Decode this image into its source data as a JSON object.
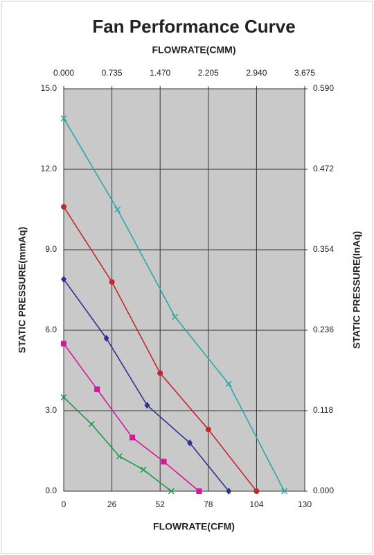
{
  "chart_data": {
    "type": "line",
    "title": "Fan Performance Curve",
    "x_label": "FLOWRATE(CFM)",
    "x2_label": "FLOWRATE(CMM)",
    "y_label": "STATIC PRESSURE(mmAq)",
    "y2_label": "STATIC PRESSURE(InAq)",
    "xlim": [
      0,
      130
    ],
    "xticks": [
      0,
      26,
      52,
      78,
      104,
      130
    ],
    "x2lim": [
      0,
      3.675
    ],
    "x2ticks": [
      {
        "value": 0,
        "label": "0.000"
      },
      0.735,
      {
        "value": 1.47,
        "label": "1.470"
      },
      2.205,
      {
        "value": 2.94,
        "label": "2.940"
      },
      3.675
    ],
    "ylim": [
      0,
      15
    ],
    "yticks": [
      {
        "value": 0,
        "label": "0.0"
      },
      {
        "value": 3,
        "label": "3.0"
      },
      {
        "value": 6,
        "label": "6.0"
      },
      {
        "value": 9,
        "label": "9.0"
      },
      {
        "value": 12,
        "label": "12.0"
      },
      {
        "value": 15,
        "label": "15.0"
      }
    ],
    "y2lim": [
      0,
      0.59
    ],
    "y2ticks": [
      {
        "value": 0,
        "label": "0.000"
      },
      0.118,
      0.236,
      0.354,
      0.472,
      {
        "value": 0.59,
        "label": "0.590"
      }
    ],
    "grid": true,
    "plot_background": "#c9c9c9",
    "series": [
      {
        "color": "#2aa8a8",
        "marker": "cross",
        "x": [
          0,
          29,
          60,
          89,
          119
        ],
        "values": [
          13.9,
          10.5,
          6.5,
          4.0,
          0
        ]
      },
      {
        "color": "#c0282d",
        "marker": "circle",
        "x": [
          0,
          26,
          52,
          78,
          104
        ],
        "values": [
          10.6,
          7.8,
          4.4,
          2.3,
          0
        ]
      },
      {
        "color": "#2e3192",
        "marker": "diamond",
        "x": [
          0,
          23,
          45,
          68,
          89
        ],
        "values": [
          7.9,
          5.7,
          3.2,
          1.8,
          0
        ]
      },
      {
        "color": "#d4189a",
        "marker": "square",
        "x": [
          0,
          18,
          37,
          54,
          73
        ],
        "values": [
          5.5,
          3.8,
          2.0,
          1.1,
          0
        ]
      },
      {
        "color": "#1f9a4a",
        "marker": "cross",
        "x": [
          0,
          15,
          30,
          43,
          58
        ],
        "values": [
          3.5,
          2.5,
          1.3,
          0.8,
          0
        ]
      }
    ]
  }
}
